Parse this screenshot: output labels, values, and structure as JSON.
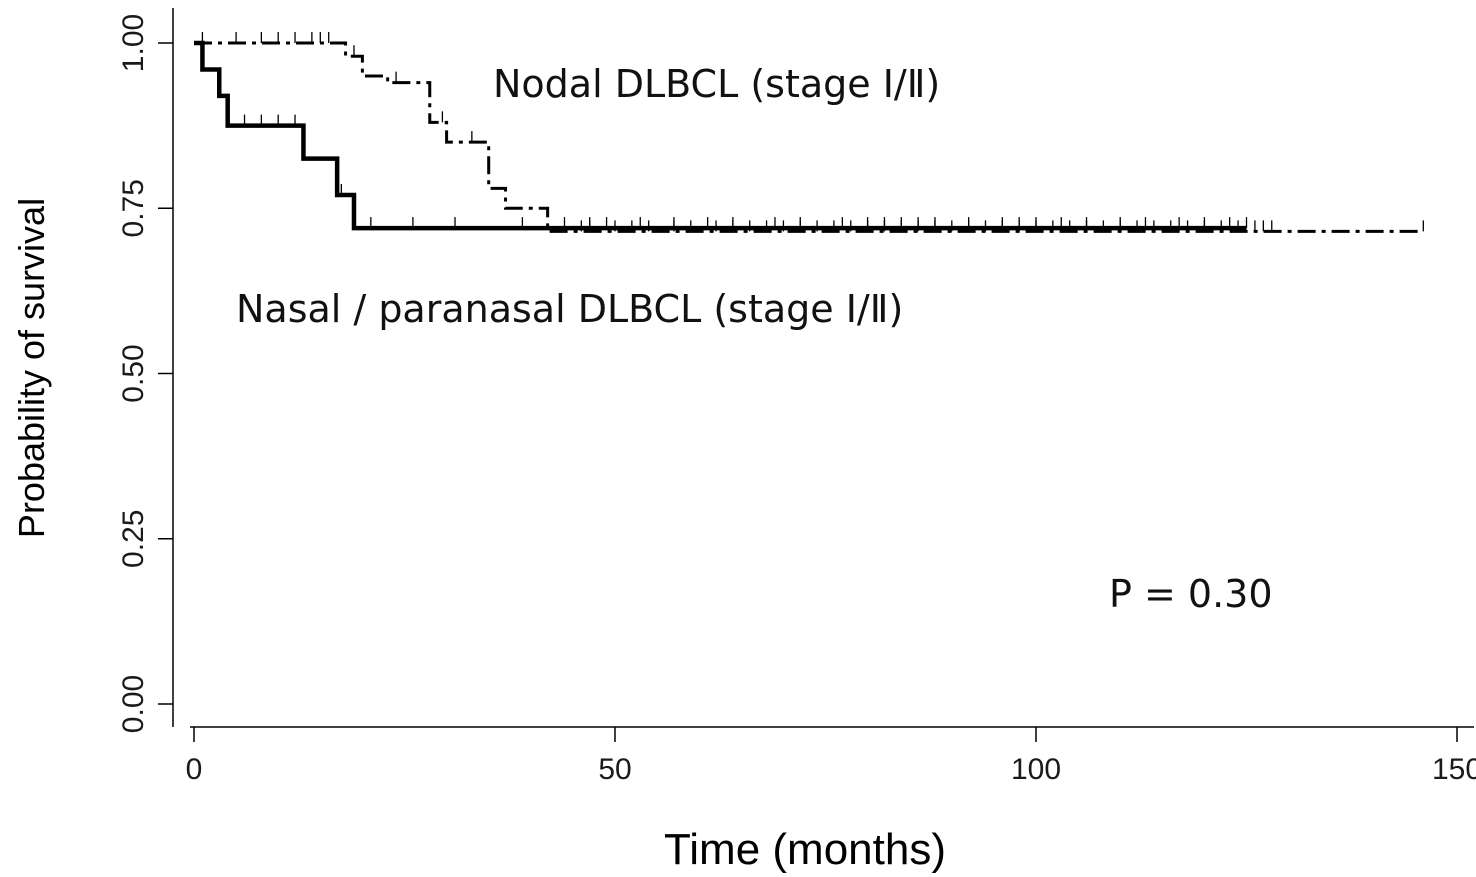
{
  "chart_data": {
    "type": "line",
    "subtype": "kaplan-meier",
    "title": "",
    "xlabel": "Time (months)",
    "ylabel": "Probability of survival",
    "xlim": [
      0,
      150
    ],
    "ylim": [
      0,
      1.0
    ],
    "x_ticks": [
      0,
      50,
      100,
      150
    ],
    "x_tick_labels": [
      "0",
      "50",
      "100",
      "150"
    ],
    "y_ticks": [
      0,
      0.25,
      0.5,
      0.75,
      1.0
    ],
    "y_tick_labels": [
      "0.00",
      "0.25",
      "0.50",
      "0.75",
      "1.00"
    ],
    "grid": false,
    "series": [
      {
        "label": "Nodal DLBCL (stage Ⅰ/Ⅱ)",
        "line_style": "dash-dot",
        "color": "#000000",
        "steps": [
          [
            0,
            1.0
          ],
          [
            18,
            0.98
          ],
          [
            20,
            0.95
          ],
          [
            23,
            0.94
          ],
          [
            28,
            0.88
          ],
          [
            30,
            0.85
          ],
          [
            35,
            0.78
          ],
          [
            37,
            0.75
          ],
          [
            42,
            0.715
          ],
          [
            146,
            0.715
          ]
        ],
        "censored": [
          1,
          5,
          8,
          10,
          12,
          14,
          15,
          16,
          19,
          24,
          29.5,
          33,
          46,
          47,
          50,
          52,
          54,
          57,
          59,
          62,
          64,
          66,
          68,
          70,
          72,
          74,
          76,
          78,
          80,
          82,
          84,
          86,
          88,
          90,
          92,
          94,
          96,
          98,
          100,
          102,
          104,
          106,
          108,
          110,
          112,
          114,
          116,
          118,
          120,
          122,
          124,
          126,
          127,
          128,
          146
        ]
      },
      {
        "label": "Nasal / paranasal DLBCL  (stage Ⅰ/Ⅱ)",
        "line_style": "solid",
        "color": "#000000",
        "steps": [
          [
            0,
            1.0
          ],
          [
            1,
            0.96
          ],
          [
            3,
            0.92
          ],
          [
            4,
            0.875
          ],
          [
            13,
            0.825
          ],
          [
            17,
            0.77
          ],
          [
            19,
            0.72
          ],
          [
            125,
            0.72
          ]
        ],
        "censored": [
          6,
          8,
          10,
          12,
          17.5,
          21,
          26,
          31,
          39,
          44,
          47,
          49,
          53,
          57,
          61,
          64,
          69,
          72,
          77,
          80,
          82,
          84,
          86,
          88,
          92,
          96,
          98,
          100,
          103,
          106,
          110,
          113,
          117,
          120,
          123,
          125
        ]
      }
    ],
    "annotations": [
      {
        "text": "Nodal DLBCL (stage Ⅰ/Ⅱ)"
      },
      {
        "text": "Nasal / paranasal DLBCL  (stage Ⅰ/Ⅱ)"
      },
      {
        "text": "P = 0.30"
      }
    ]
  }
}
